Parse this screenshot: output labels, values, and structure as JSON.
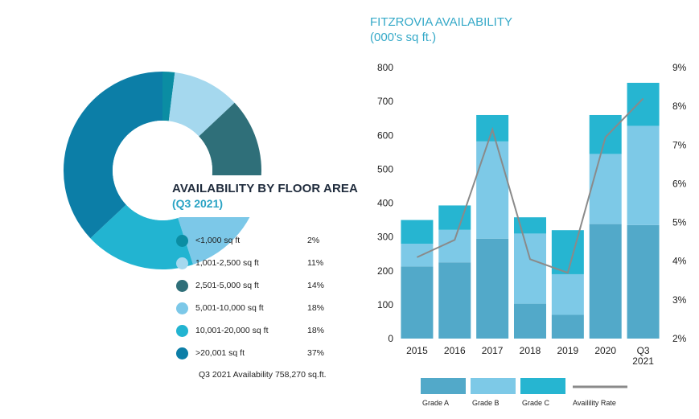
{
  "chart_data": [
    {
      "type": "pie",
      "title": "AVAILABILITY BY FLOOR AREA",
      "subtitle": "(Q3 2021)",
      "slices": [
        {
          "label": "<1,000 sq ft",
          "value": 2,
          "display": "2%",
          "color": "#0b8da3"
        },
        {
          "label": "1,001-2,500 sq ft",
          "value": 11,
          "display": "11%",
          "color": "#a5d8ee"
        },
        {
          "label": "2,501-5,000 sq ft",
          "value": 14,
          "display": "14%",
          "color": "#2f6f79"
        },
        {
          "label": "5,001-10,000 sq ft",
          "value": 18,
          "display": "18%",
          "color": "#7cc8e8"
        },
        {
          "label": "10,001-20,000 sq ft",
          "value": 18,
          "display": "18%",
          "color": "#22b4d1"
        },
        {
          "label": ">20,001 sq ft",
          "value": 37,
          "display": "37%",
          "color": "#0c7ea7"
        }
      ],
      "footnote": "Q3 2021 Availability 758,270 sq.ft."
    },
    {
      "type": "bar",
      "title": "FITZROVIA AVAILABILITY",
      "subtitle": "(000's sq ft.)",
      "categories": [
        "2015",
        "2016",
        "2017",
        "2018",
        "2019",
        "2020",
        "Q3 2021"
      ],
      "category_lines": [
        [
          "2015"
        ],
        [
          "2016"
        ],
        [
          "2017"
        ],
        [
          "2018"
        ],
        [
          "2019"
        ],
        [
          "2020"
        ],
        [
          "Q3",
          "2021"
        ]
      ],
      "stacked": true,
      "series": [
        {
          "name": "Grade A",
          "values": [
            213,
            225,
            295,
            103,
            70,
            338,
            335
          ],
          "color": "#52a9c9"
        },
        {
          "name": "Grade B",
          "values": [
            67,
            96,
            287,
            207,
            120,
            207,
            293
          ],
          "color": "#7dc9e7"
        },
        {
          "name": "Grade C",
          "values": [
            70,
            72,
            78,
            48,
            130,
            115,
            127
          ],
          "color": "#26b5d1"
        }
      ],
      "line_series": {
        "name": "Availility Rate",
        "values": [
          4.1,
          4.55,
          7.4,
          4.05,
          3.7,
          7.2,
          8.2
        ],
        "color": "#8a8a8a"
      },
      "ylim": [
        0,
        800
      ],
      "y_ticks": [
        "0",
        "100",
        "200",
        "300",
        "400",
        "500",
        "600",
        "700",
        "800"
      ],
      "y2lim": [
        2,
        9
      ],
      "y2_ticks": [
        "2%",
        "3%",
        "4%",
        "5%",
        "6%",
        "7%",
        "8%",
        "9%"
      ],
      "legend_position": "bottom"
    }
  ]
}
